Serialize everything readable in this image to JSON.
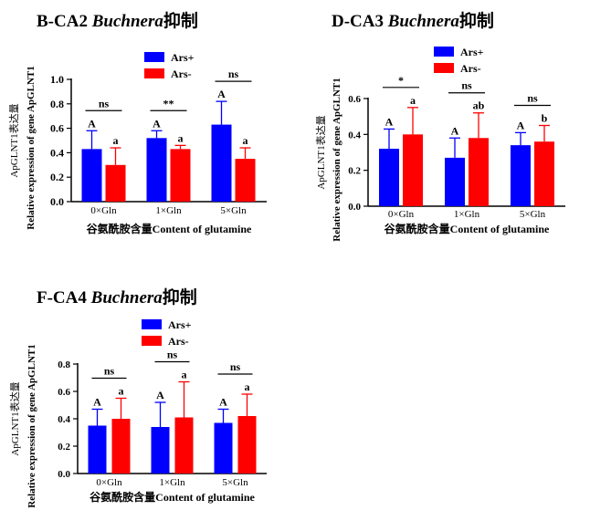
{
  "legend": {
    "ars_plus": "Ars+",
    "ars_minus": "Ars-"
  },
  "colors": {
    "ars_plus": "#0000ff",
    "ars_minus": "#ff0000"
  },
  "chart_data": [
    {
      "type": "bar",
      "panel_title": {
        "prefix": "B-CA2",
        "genus": "Buchnera",
        "suffix": "抑制"
      },
      "ylabel_lines": [
        "ApGLNT1表达量",
        "Relative expression of gene ApGLNT1"
      ],
      "xlabel": "谷氨酰胺含量Content of glutamine",
      "categories": [
        "0×Gln",
        "1×Gln",
        "5×Gln"
      ],
      "ylim": [
        0,
        1.0
      ],
      "yticks": [
        "0.0",
        "0.2",
        "0.4",
        "0.6",
        "0.8",
        "1.0"
      ],
      "legend_position": "top-right",
      "series": [
        {
          "name": "Ars+",
          "values": [
            0.43,
            0.52,
            0.63
          ],
          "errors": [
            0.15,
            0.06,
            0.19
          ],
          "letters": [
            "A",
            "A",
            "A"
          ]
        },
        {
          "name": "Ars-",
          "values": [
            0.3,
            0.43,
            0.35
          ],
          "errors": [
            0.14,
            0.03,
            0.09
          ],
          "letters": [
            "a",
            "a",
            "a"
          ]
        }
      ],
      "significance": [
        "ns",
        "**",
        "ns"
      ]
    },
    {
      "type": "bar",
      "panel_title": {
        "prefix": "D-CA3",
        "genus": "Buchnera",
        "suffix": "抑制"
      },
      "ylabel_lines": [
        "ApGLNT1表达量",
        "Relative expression of gene ApGLNT1"
      ],
      "xlabel": "谷氨酰胺含量Content of glutamine",
      "categories": [
        "0×Gln",
        "1×Gln",
        "5×Gln"
      ],
      "ylim": [
        0,
        0.6
      ],
      "yticks": [
        "0.0",
        "0.2",
        "0.4",
        "0.6"
      ],
      "legend_position": "top-right",
      "series": [
        {
          "name": "Ars+",
          "values": [
            0.32,
            0.27,
            0.34
          ],
          "errors": [
            0.11,
            0.11,
            0.07
          ],
          "letters": [
            "A",
            "A",
            "A"
          ]
        },
        {
          "name": "Ars-",
          "values": [
            0.4,
            0.38,
            0.36
          ],
          "errors": [
            0.15,
            0.14,
            0.09
          ],
          "letters": [
            "a",
            "ab",
            "b"
          ]
        }
      ],
      "significance": [
        "*",
        "ns",
        "ns"
      ]
    },
    {
      "type": "bar",
      "panel_title": {
        "prefix": "F-CA4",
        "genus": "Buchnera",
        "suffix": "抑制"
      },
      "ylabel_lines": [
        "ApGLNT1表达量",
        "Relative expression of gene ApGLNT1"
      ],
      "xlabel": "谷氨酰胺含量Content of glutamine",
      "categories": [
        "0×Gln",
        "1×Gln",
        "5×Gln"
      ],
      "ylim": [
        0,
        0.8
      ],
      "yticks": [
        "0.0",
        "0.2",
        "0.4",
        "0.6",
        "0.8"
      ],
      "legend_position": "top-right",
      "series": [
        {
          "name": "Ars+",
          "values": [
            0.35,
            0.34,
            0.37
          ],
          "errors": [
            0.12,
            0.18,
            0.1
          ],
          "letters": [
            "A",
            "A",
            "A"
          ]
        },
        {
          "name": "Ars-",
          "values": [
            0.4,
            0.41,
            0.42
          ],
          "errors": [
            0.15,
            0.26,
            0.16
          ],
          "letters": [
            "a",
            "a",
            "a"
          ]
        }
      ],
      "significance": [
        "ns",
        "ns",
        "ns"
      ]
    }
  ]
}
